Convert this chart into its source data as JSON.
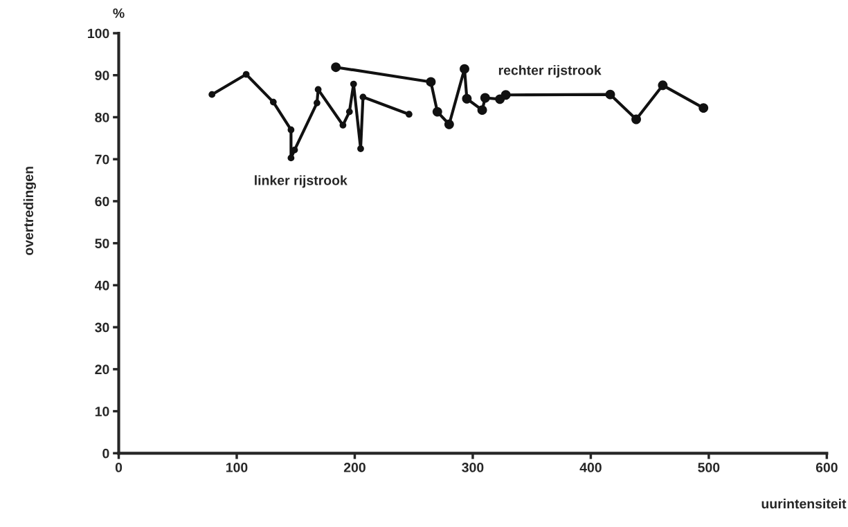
{
  "chart_data": {
    "type": "line",
    "xlabel": "uurintensiteit",
    "ylabel": "overtredingen",
    "annotations": [
      "%"
    ],
    "xlim": [
      0,
      600
    ],
    "xticks": [
      0,
      100,
      200,
      300,
      400,
      500,
      600
    ],
    "ylim": [
      0,
      100
    ],
    "yticks": [
      0,
      10,
      20,
      30,
      40,
      50,
      60,
      70,
      80,
      90,
      100
    ],
    "grid": false,
    "legend": false,
    "marker": "circle",
    "line_style": "solid",
    "series": [
      {
        "name": "linker rijstrook",
        "color": "#111111",
        "x": [
          79,
          108,
          131,
          146,
          146,
          149,
          168,
          169,
          190,
          195.5,
          199,
          205,
          207,
          246
        ],
        "values": [
          85.4,
          90.2,
          83.6,
          77.0,
          70.3,
          72.2,
          83.4,
          86.6,
          78.1,
          81.3,
          87.9,
          72.5,
          84.8,
          80.7
        ]
      },
      {
        "name": "rechter rijstrook",
        "color": "#111111",
        "x": [
          184,
          264.5,
          270,
          280,
          293,
          295,
          308,
          310.5,
          323,
          328,
          416.5,
          438.5,
          461,
          495.5
        ],
        "values": [
          91.9,
          88.4,
          81.3,
          78.3,
          91.5,
          84.4,
          81.7,
          84.6,
          84.3,
          85.3,
          85.4,
          79.5,
          87.6,
          82.2
        ]
      }
    ]
  }
}
